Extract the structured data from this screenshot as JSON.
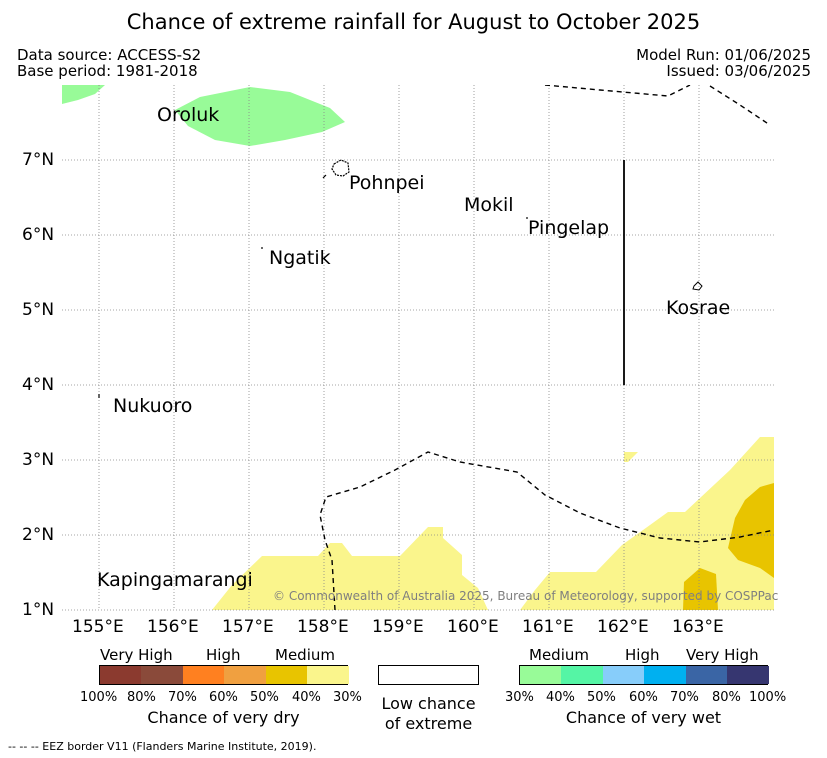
{
  "title": "Chance of extreme rainfall for August to October 2025",
  "header": {
    "data_source": "Data source: ACCESS-S2",
    "base_period": "Base period: 1981-2018",
    "model_run": "Model Run: 01/06/2025",
    "issued": "Issued: 03/06/2025"
  },
  "map": {
    "lon_ticks": [
      "155°E",
      "156°E",
      "157°E",
      "158°E",
      "159°E",
      "160°E",
      "161°E",
      "162°E",
      "163°E"
    ],
    "lat_ticks": [
      "7°N",
      "6°N",
      "5°N",
      "4°N",
      "3°N",
      "2°N",
      "1°N"
    ],
    "places": {
      "oroluk": "Oroluk",
      "pohnpei": "Pohnpei",
      "mokil": "Mokil",
      "pingelap": "Pingelap",
      "ngatik": "Ngatik",
      "kosrae": "Kosrae",
      "nukuoro": "Nukuoro",
      "kapingamarangi": "Kapingamarangi"
    },
    "copyright": "© Commonwealth of Australia 2025, Bureau of Meteorology, supported by COSPPac"
  },
  "legend": {
    "dry": {
      "categories": [
        "Very High",
        "High",
        "Medium"
      ],
      "labels": [
        "100%",
        "80%",
        "70%",
        "60%",
        "50%",
        "40%",
        "30%"
      ],
      "colors": [
        "#8b3a2f",
        "#8a4a3a",
        "#ff8020",
        "#f0a040",
        "#e8c400",
        "#faf58c"
      ],
      "caption": "Chance of very dry"
    },
    "neutral": {
      "caption_line1": "Low chance",
      "caption_line2": "of extreme"
    },
    "wet": {
      "categories": [
        "Medium",
        "High",
        "Very High"
      ],
      "labels": [
        "30%",
        "40%",
        "50%",
        "60%",
        "70%",
        "80%",
        "100%"
      ],
      "colors": [
        "#98fb98",
        "#55f5a5",
        "#87cdfa",
        "#00b0f0",
        "#3a65a5",
        "#363670"
      ],
      "caption": "Chance of very wet"
    }
  },
  "footnote": "--  --  -- EEZ border V11 (Flanders Marine Institute, 2019)."
}
